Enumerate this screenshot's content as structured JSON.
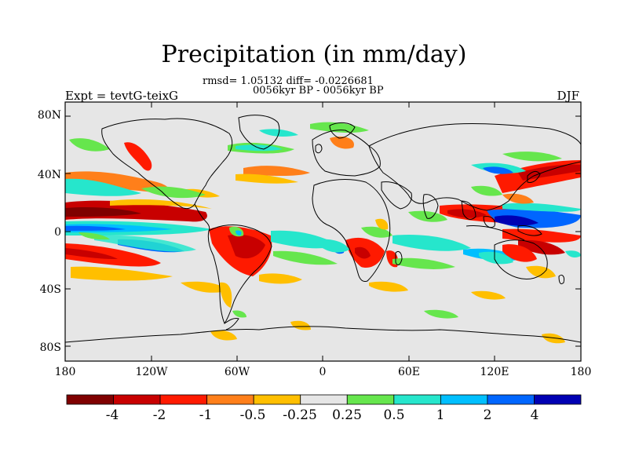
{
  "title": "Precipitation (in mm/day)",
  "stats_line": "rmsd= 1.05132 diff= -0.0226681",
  "period_line": "0056kyr BP - 0056kyr BP",
  "experiment_label": "Expt = tevtG-teixG",
  "season_label": "DJF",
  "lat_labels": [
    "80N",
    "40N",
    "0",
    "40S",
    "80S"
  ],
  "lon_labels": [
    "180",
    "120W",
    "60W",
    "0",
    "60E",
    "120E",
    "180"
  ],
  "colorbar": {
    "colors": [
      "#7f0000",
      "#c80000",
      "#ff1a00",
      "#ff7f1a",
      "#ffbf00",
      "#e6e6e6",
      "#66e64d",
      "#26e6cc",
      "#00bfff",
      "#0066ff",
      "#0000b3"
    ],
    "labels": [
      "-4",
      "-2",
      "-1",
      "-0.5",
      "-0.25",
      "0.25",
      "0.5",
      "1",
      "2",
      "4"
    ]
  },
  "map": {
    "background_color": "#e6e6e6",
    "projection": "cylindrical equidistant",
    "lon_range": [
      -180,
      180
    ],
    "lat_range": [
      -90,
      90
    ]
  }
}
